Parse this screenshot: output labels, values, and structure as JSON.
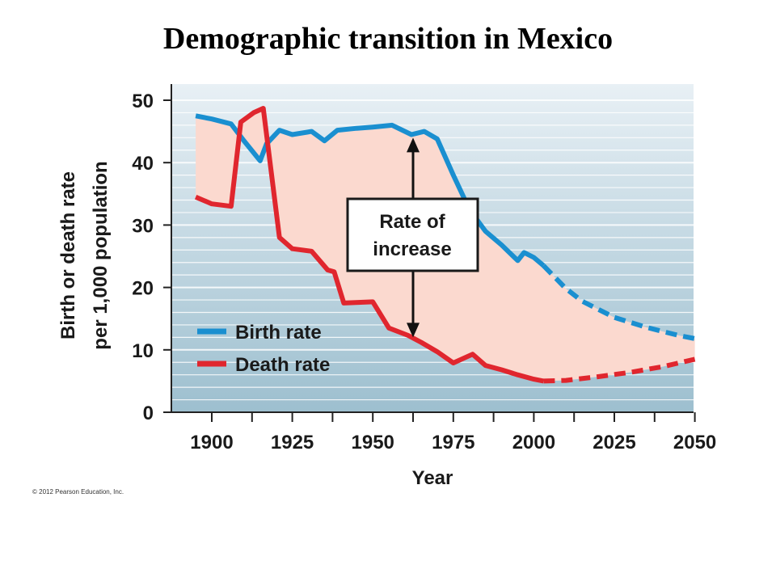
{
  "title": "Demographic transition in Mexico",
  "copyright": "© 2012 Pearson Education, Inc.",
  "colors": {
    "birth": "#1a8fd0",
    "death": "#e0262e",
    "fill": "#fbd9cf",
    "plot_bg_top": "#e8f0f5",
    "plot_bg_bottom": "#9dbfcf",
    "grid": "#ffffff"
  },
  "chart_data": {
    "type": "line",
    "title": "Demographic transition in Mexico",
    "xlabel": "Year",
    "ylabel_lines": [
      "Birth or death rate",
      "per 1,000 population"
    ],
    "xlim": [
      1888,
      2050
    ],
    "ylim": [
      0,
      52
    ],
    "x_ticks": [
      1900,
      1925,
      1950,
      1975,
      2000,
      2025,
      2050
    ],
    "x_tick_labels": [
      "1900",
      "1925",
      "1950",
      "1975",
      "2000",
      "2025",
      "2050"
    ],
    "y_ticks": [
      0,
      10,
      20,
      30,
      40,
      50
    ],
    "y_tick_labels": [
      "0",
      "10",
      "20",
      "30",
      "40",
      "50"
    ],
    "grid": true,
    "legend_position": "bottom-left",
    "series": [
      {
        "name": "Birth rate",
        "color": "#1a8fd0",
        "observed": [
          [
            1895,
            47.5
          ],
          [
            1900,
            47
          ],
          [
            1906,
            46.2
          ],
          [
            1910,
            43.5
          ],
          [
            1915,
            40.3
          ],
          [
            1917,
            43
          ],
          [
            1921,
            45.2
          ],
          [
            1925,
            44.5
          ],
          [
            1931,
            45
          ],
          [
            1935,
            43.5
          ],
          [
            1939,
            45.2
          ],
          [
            1945,
            45.5
          ],
          [
            1950,
            45.7
          ],
          [
            1956,
            46
          ],
          [
            1962,
            44.5
          ],
          [
            1966,
            45
          ],
          [
            1970,
            43.8
          ],
          [
            1975,
            38
          ],
          [
            1980,
            32.5
          ],
          [
            1985,
            29
          ],
          [
            1990,
            26.8
          ],
          [
            1995,
            24.3
          ],
          [
            1997,
            25.6
          ],
          [
            2000,
            24.8
          ],
          [
            2003,
            23.5
          ]
        ],
        "projected": [
          [
            2003,
            23.5
          ],
          [
            2010,
            19.8
          ],
          [
            2015,
            17.8
          ],
          [
            2025,
            15.2
          ],
          [
            2035,
            13.6
          ],
          [
            2045,
            12.3
          ],
          [
            2050,
            11.8
          ]
        ]
      },
      {
        "name": "Death rate",
        "color": "#e0262e",
        "observed": [
          [
            1895,
            34.5
          ],
          [
            1900,
            33.4
          ],
          [
            1906,
            33
          ],
          [
            1909,
            46.5
          ],
          [
            1913,
            48
          ],
          [
            1916,
            48.7
          ],
          [
            1921,
            28
          ],
          [
            1925,
            26.2
          ],
          [
            1931,
            25.8
          ],
          [
            1936,
            22.8
          ],
          [
            1938,
            22.5
          ],
          [
            1941,
            17.5
          ],
          [
            1950,
            17.7
          ],
          [
            1955,
            13.5
          ],
          [
            1961,
            12.3
          ],
          [
            1965,
            11.2
          ],
          [
            1970,
            9.7
          ],
          [
            1975,
            7.9
          ],
          [
            1981,
            9.3
          ],
          [
            1985,
            7.5
          ],
          [
            1990,
            6.8
          ],
          [
            1995,
            6
          ],
          [
            2000,
            5.3
          ],
          [
            2003,
            5
          ]
        ],
        "projected": [
          [
            2003,
            5
          ],
          [
            2010,
            5.1
          ],
          [
            2020,
            5.7
          ],
          [
            2030,
            6.4
          ],
          [
            2040,
            7.3
          ],
          [
            2050,
            8.5
          ]
        ]
      }
    ],
    "annotation": {
      "lines": [
        "Rate of",
        "increase"
      ],
      "x": 1962.5,
      "y_top": 44,
      "y_bottom": 12
    }
  }
}
